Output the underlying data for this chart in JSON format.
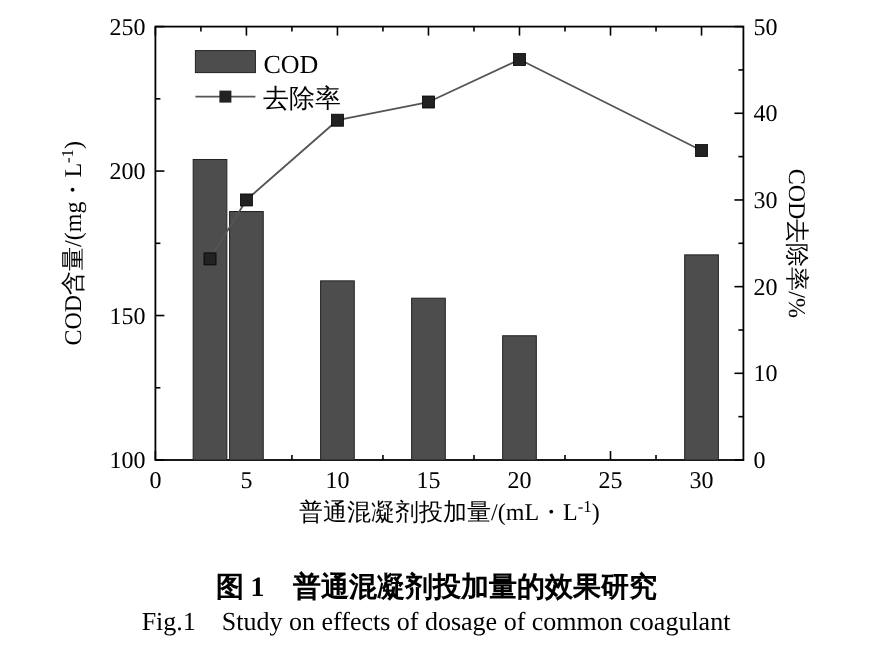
{
  "chart_data": {
    "type": "bar",
    "title": "图 1　普通混凝剂投加量的效果研究",
    "subtitle": "Fig.1　Study on effects of dosage of common coagulant",
    "xlabel": "普通混凝剂投加量/(mL・L$^{-1}$)",
    "ylabel": "COD含量/(mg・L$^{-1}$)",
    "y2label": "COD去除率/%",
    "x": [
      3,
      5,
      10,
      15,
      20,
      30
    ],
    "xlim": [
      0,
      32.3
    ],
    "xticks": [
      0,
      {
        "value": 2.5,
        "label": null
      },
      5,
      {
        "value": 7.5,
        "label": null
      },
      10,
      {
        "value": 12.5,
        "label": null
      },
      15,
      {
        "value": 17.5,
        "label": null
      },
      20,
      {
        "value": 22.5,
        "label": null
      },
      25,
      {
        "value": 27.5,
        "label": null
      },
      30
    ],
    "ylim": [
      100,
      250
    ],
    "yticks": [
      100,
      {
        "value": 125,
        "label": null
      },
      150,
      {
        "value": 175,
        "label": null
      },
      200,
      {
        "value": 225,
        "label": null
      },
      250
    ],
    "y2lim": [
      0,
      50
    ],
    "y2ticks": [
      0,
      {
        "value": 5,
        "label": null
      },
      10,
      {
        "value": 15,
        "label": null
      },
      20,
      {
        "value": 25,
        "label": null
      },
      30,
      {
        "value": 35,
        "label": null
      },
      40,
      {
        "value": 45,
        "label": null
      },
      50
    ],
    "legend": "top left",
    "series": [
      {
        "name": "COD",
        "color": "#4d4d4d",
        "values": [
          204,
          186,
          162,
          156,
          143,
          171
        ]
      },
      {
        "name": "去除率",
        "type": "line",
        "axis": "y2",
        "marker": "square",
        "color": "#555555",
        "values": [
          23.2,
          30.0,
          39.2,
          41.3,
          46.2,
          35.7
        ]
      }
    ]
  }
}
